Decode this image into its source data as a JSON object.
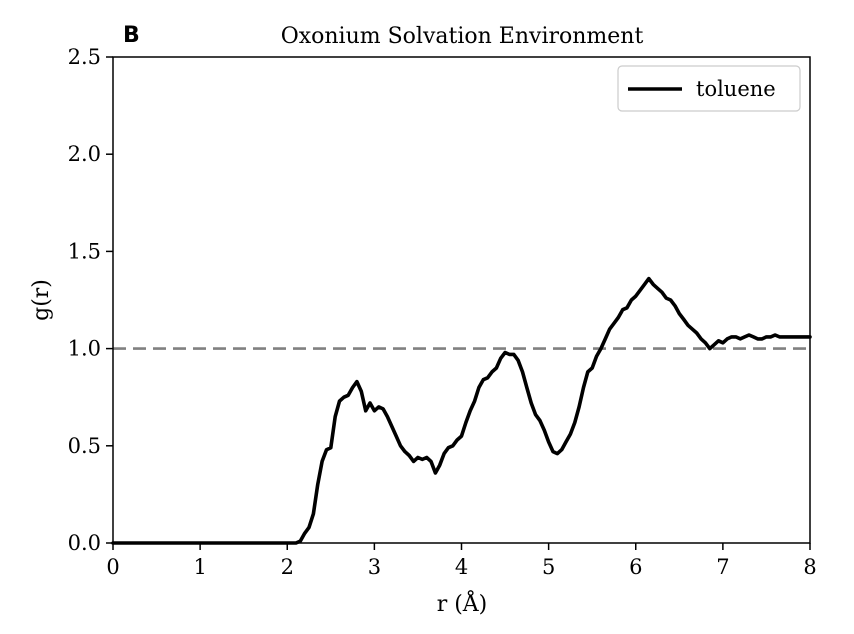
{
  "panel_letter": "B",
  "chart_data": {
    "type": "line",
    "title": "Oxonium Solvation Environment",
    "xlabel": "r (Å)",
    "ylabel": "g(r)",
    "xlim": [
      0,
      8
    ],
    "ylim": [
      0,
      2.5
    ],
    "xticks": [
      "0",
      "1",
      "2",
      "3",
      "4",
      "5",
      "6",
      "7",
      "8"
    ],
    "yticks": [
      "0.0",
      "0.5",
      "1.0",
      "1.5",
      "2.0",
      "2.5"
    ],
    "grid": false,
    "legend_position": "top-right",
    "reference_line": {
      "y": 1.0,
      "style": "dashed",
      "color": "#808080"
    },
    "series": [
      {
        "name": "toluene",
        "color": "#000000",
        "x": [
          0,
          2.0,
          2.1,
          2.15,
          2.2,
          2.25,
          2.3,
          2.35,
          2.4,
          2.45,
          2.5,
          2.55,
          2.6,
          2.65,
          2.7,
          2.75,
          2.8,
          2.85,
          2.9,
          2.95,
          3.0,
          3.05,
          3.1,
          3.15,
          3.2,
          3.25,
          3.3,
          3.35,
          3.4,
          3.45,
          3.5,
          3.55,
          3.6,
          3.65,
          3.7,
          3.75,
          3.8,
          3.85,
          3.9,
          3.95,
          4.0,
          4.05,
          4.1,
          4.15,
          4.2,
          4.25,
          4.3,
          4.35,
          4.4,
          4.45,
          4.5,
          4.55,
          4.6,
          4.65,
          4.7,
          4.75,
          4.8,
          4.85,
          4.9,
          4.95,
          5.0,
          5.05,
          5.1,
          5.15,
          5.2,
          5.25,
          5.3,
          5.35,
          5.4,
          5.45,
          5.5,
          5.55,
          5.6,
          5.65,
          5.7,
          5.75,
          5.8,
          5.85,
          5.9,
          5.95,
          6.0,
          6.05,
          6.1,
          6.15,
          6.2,
          6.25,
          6.3,
          6.35,
          6.4,
          6.45,
          6.5,
          6.55,
          6.6,
          6.65,
          6.7,
          6.75,
          6.8,
          6.85,
          6.9,
          6.95,
          7.0,
          7.05,
          7.1,
          7.15,
          7.2,
          7.25,
          7.3,
          7.35,
          7.4,
          7.45,
          7.5,
          7.55,
          7.6,
          7.65,
          7.7,
          7.75,
          7.8,
          7.85,
          7.9,
          7.95,
          8.0
        ],
        "y": [
          0,
          0,
          0.0,
          0.01,
          0.05,
          0.08,
          0.15,
          0.3,
          0.42,
          0.48,
          0.49,
          0.65,
          0.73,
          0.75,
          0.76,
          0.8,
          0.83,
          0.78,
          0.68,
          0.72,
          0.68,
          0.7,
          0.69,
          0.65,
          0.6,
          0.55,
          0.5,
          0.47,
          0.45,
          0.42,
          0.44,
          0.43,
          0.44,
          0.42,
          0.36,
          0.4,
          0.46,
          0.49,
          0.5,
          0.53,
          0.55,
          0.62,
          0.68,
          0.73,
          0.8,
          0.84,
          0.85,
          0.88,
          0.9,
          0.95,
          0.98,
          0.97,
          0.97,
          0.94,
          0.88,
          0.8,
          0.72,
          0.66,
          0.63,
          0.58,
          0.52,
          0.47,
          0.46,
          0.48,
          0.52,
          0.56,
          0.62,
          0.7,
          0.8,
          0.88,
          0.9,
          0.96,
          1.0,
          1.05,
          1.1,
          1.13,
          1.16,
          1.2,
          1.21,
          1.25,
          1.27,
          1.3,
          1.33,
          1.36,
          1.33,
          1.31,
          1.29,
          1.26,
          1.25,
          1.22,
          1.18,
          1.15,
          1.12,
          1.1,
          1.08,
          1.05,
          1.03,
          1.0,
          1.02,
          1.04,
          1.03,
          1.05,
          1.06,
          1.06,
          1.05,
          1.06,
          1.07,
          1.06,
          1.05,
          1.05,
          1.06,
          1.06,
          1.07,
          1.06,
          1.06,
          1.06,
          1.06,
          1.06,
          1.06,
          1.06,
          1.06
        ]
      }
    ]
  }
}
